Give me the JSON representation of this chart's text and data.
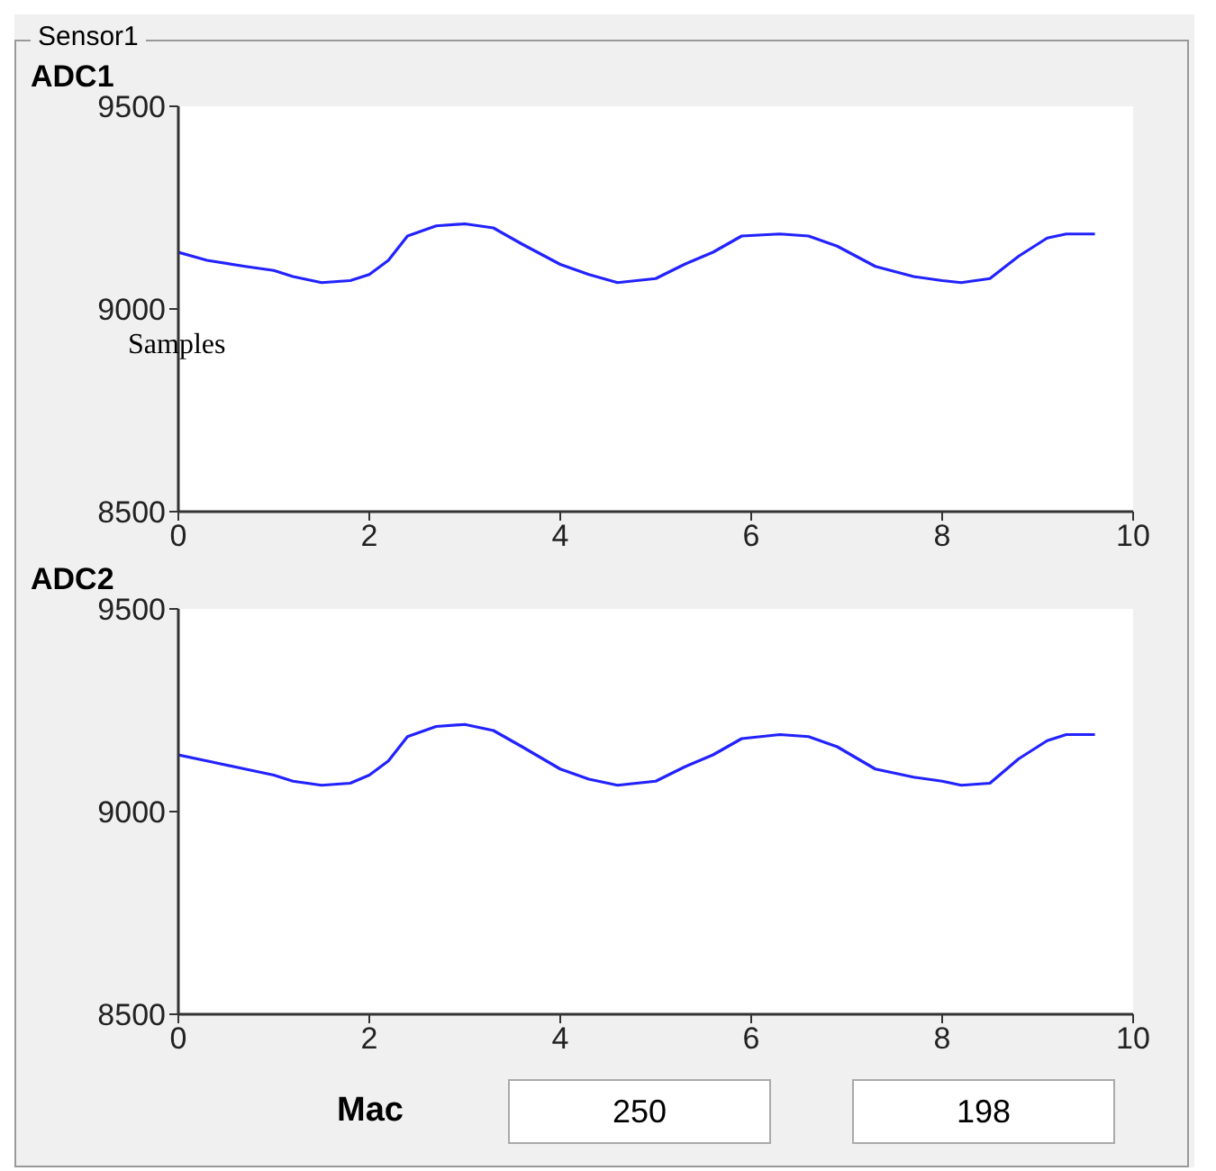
{
  "chart_data": [
    {
      "type": "other",
      "title": "Sensor1",
      "annotations": [
        "Mac",
        "250",
        "198"
      ]
    },
    {
      "type": "line",
      "title": "ADC1",
      "annotations": [
        "Samples"
      ],
      "xlim": [
        0,
        10
      ],
      "xticks": [
        0,
        2,
        4,
        6,
        8,
        10
      ],
      "ylim": [
        8500,
        9500
      ],
      "yticks": [
        8500,
        9000,
        9500
      ],
      "series": [
        {
          "color": "#2222ff",
          "x": [
            0,
            0.3,
            0.7,
            1,
            1.2,
            1.5,
            1.8,
            2,
            2.2,
            2.4,
            2.7,
            3,
            3.3,
            3.6,
            4,
            4.3,
            4.6,
            5,
            5.3,
            5.6,
            5.9,
            6.3,
            6.6,
            6.9,
            7.3,
            7.7,
            8,
            8.2,
            8.5,
            8.8,
            9.1,
            9.3,
            9.6
          ],
          "values": [
            9140,
            9120,
            9105,
            9095,
            9080,
            9065,
            9070,
            9085,
            9120,
            9180,
            9205,
            9210,
            9200,
            9160,
            9110,
            9085,
            9065,
            9075,
            9110,
            9140,
            9180,
            9185,
            9180,
            9155,
            9105,
            9080,
            9070,
            9065,
            9075,
            9130,
            9175,
            9185,
            9185
          ]
        }
      ]
    },
    {
      "type": "line",
      "title": "ADC2",
      "xlim": [
        0,
        10
      ],
      "xticks": [
        0,
        2,
        4,
        6,
        8,
        10
      ],
      "ylim": [
        8500,
        9500
      ],
      "yticks": [
        8500,
        9000,
        9500
      ],
      "series": [
        {
          "color": "#2222ff",
          "x": [
            0,
            0.3,
            0.7,
            1,
            1.2,
            1.5,
            1.8,
            2,
            2.2,
            2.4,
            2.7,
            3,
            3.3,
            3.6,
            4,
            4.3,
            4.6,
            5,
            5.3,
            5.6,
            5.9,
            6.3,
            6.6,
            6.9,
            7.3,
            7.7,
            8,
            8.2,
            8.5,
            8.8,
            9.1,
            9.3,
            9.6
          ],
          "values": [
            9140,
            9125,
            9105,
            9090,
            9075,
            9065,
            9070,
            9090,
            9125,
            9185,
            9210,
            9215,
            9200,
            9160,
            9105,
            9080,
            9065,
            9075,
            9110,
            9140,
            9180,
            9190,
            9185,
            9160,
            9105,
            9085,
            9075,
            9065,
            9070,
            9130,
            9175,
            9190,
            9190
          ]
        }
      ]
    }
  ]
}
